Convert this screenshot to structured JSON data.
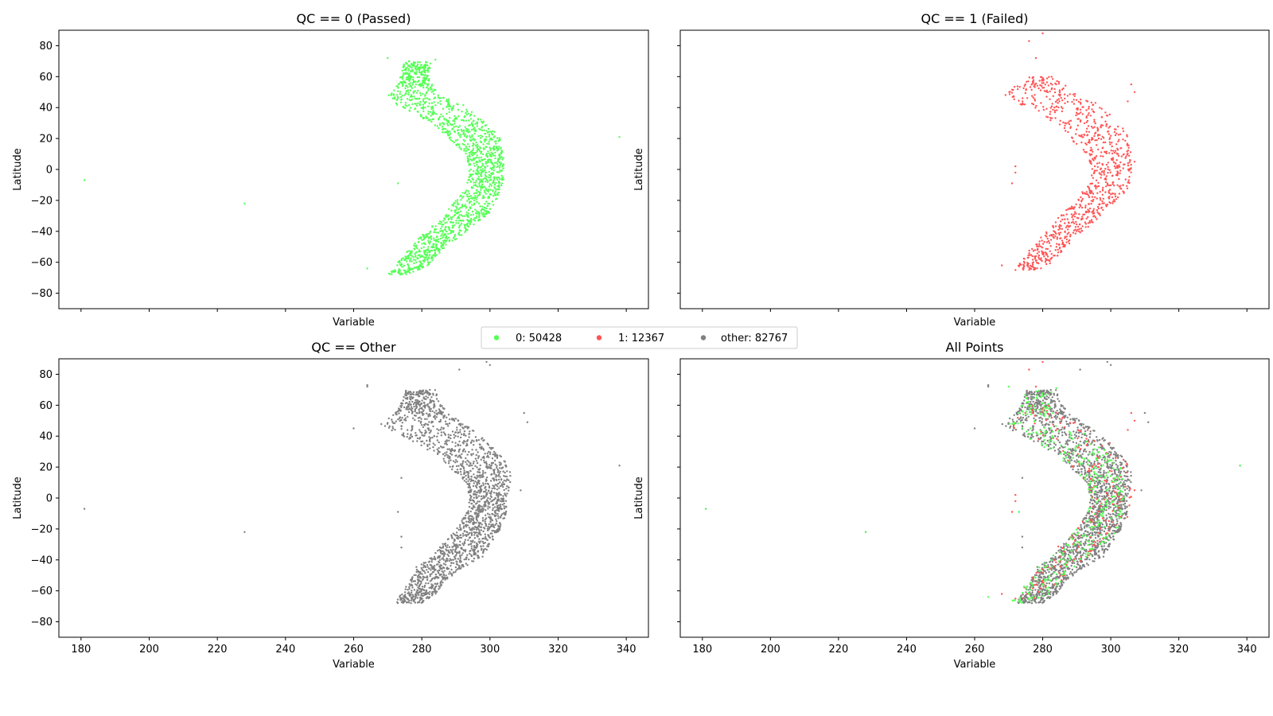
{
  "colors": {
    "passed": "#55ff55",
    "failed": "#ff5555",
    "other": "#808080"
  },
  "legend": {
    "placement": "center",
    "entries": [
      {
        "label": "0: 50428",
        "series": "passed"
      },
      {
        "label": "1: 12367",
        "series": "failed"
      },
      {
        "label": "other: 82767",
        "series": "other"
      }
    ]
  },
  "chart_data": [
    {
      "type": "scatter",
      "panel": "top-left",
      "title": "QC == 0 (Passed)",
      "xlabel": "Variable",
      "ylabel": "Latitude",
      "xlim": [
        173.5,
        346.5
      ],
      "ylim": [
        -90,
        90
      ],
      "xticks": [
        180,
        200,
        220,
        240,
        260,
        280,
        300,
        320,
        340
      ],
      "show_xticklabels": false,
      "yticks": [
        -80,
        -60,
        -40,
        -20,
        0,
        20,
        40,
        60,
        80
      ],
      "show_yticklabels": true,
      "grid": false,
      "series": [
        "passed"
      ]
    },
    {
      "type": "scatter",
      "panel": "top-right",
      "title": "QC == 1 (Failed)",
      "xlabel": "Variable",
      "ylabel": "Latitude",
      "xlim": [
        173.5,
        346.5
      ],
      "ylim": [
        -90,
        90
      ],
      "xticks": [
        180,
        200,
        220,
        240,
        260,
        280,
        300,
        320,
        340
      ],
      "show_xticklabels": false,
      "yticks": [
        -80,
        -60,
        -40,
        -20,
        0,
        20,
        40,
        60,
        80
      ],
      "show_yticklabels": false,
      "grid": false,
      "series": [
        "failed"
      ]
    },
    {
      "type": "scatter",
      "panel": "bottom-left",
      "title": "QC == Other",
      "xlabel": "Variable",
      "ylabel": "Latitude",
      "xlim": [
        173.5,
        346.5
      ],
      "ylim": [
        -90,
        90
      ],
      "xticks": [
        180,
        200,
        220,
        240,
        260,
        280,
        300,
        320,
        340
      ],
      "show_xticklabels": true,
      "yticks": [
        -80,
        -60,
        -40,
        -20,
        0,
        20,
        40,
        60,
        80
      ],
      "show_yticklabels": true,
      "grid": false,
      "series": [
        "other"
      ]
    },
    {
      "type": "scatter",
      "panel": "bottom-right",
      "title": "All Points",
      "xlabel": "Variable",
      "ylabel": "Latitude",
      "xlim": [
        173.5,
        346.5
      ],
      "ylim": [
        -90,
        90
      ],
      "xticks": [
        180,
        200,
        220,
        240,
        260,
        280,
        300,
        320,
        340
      ],
      "show_xticklabels": true,
      "yticks": [
        -80,
        -60,
        -40,
        -20,
        0,
        20,
        40,
        60,
        80
      ],
      "show_yticklabels": false,
      "grid": false,
      "series": [
        "other",
        "failed",
        "passed"
      ]
    }
  ],
  "series_data": {
    "passed": {
      "count": 50428,
      "band": [
        [
          -68,
          270,
          278
        ],
        [
          -60,
          273,
          283
        ],
        [
          -50,
          277,
          287
        ],
        [
          -42,
          280,
          292
        ],
        [
          -35,
          284,
          296
        ],
        [
          -28,
          287,
          300
        ],
        [
          -20,
          290,
          302
        ],
        [
          -10,
          293,
          304
        ],
        [
          0,
          294,
          304
        ],
        [
          10,
          293,
          304
        ],
        [
          20,
          288,
          303
        ],
        [
          28,
          284,
          300
        ],
        [
          35,
          279,
          296
        ],
        [
          42,
          272,
          292
        ],
        [
          48,
          270,
          285
        ],
        [
          55,
          273,
          283
        ],
        [
          62,
          274,
          282
        ],
        [
          70,
          275,
          283
        ]
      ],
      "outliers": [
        [
          181,
          -7
        ],
        [
          228,
          -22
        ],
        [
          338,
          21
        ],
        [
          273,
          -9
        ],
        [
          271,
          48
        ],
        [
          284,
          71
        ],
        [
          270,
          72
        ],
        [
          281,
          -44
        ],
        [
          264,
          -64
        ]
      ]
    },
    "failed": {
      "count": 12367,
      "band": [
        [
          -65,
          272,
          280
        ],
        [
          -55,
          275,
          285
        ],
        [
          -45,
          279,
          289
        ],
        [
          -38,
          282,
          293
        ],
        [
          -30,
          285,
          297
        ],
        [
          -20,
          290,
          302
        ],
        [
          -10,
          293,
          306
        ],
        [
          0,
          294,
          306
        ],
        [
          10,
          293,
          306
        ],
        [
          20,
          288,
          306
        ],
        [
          28,
          284,
          303
        ],
        [
          35,
          280,
          300
        ],
        [
          42,
          273,
          297
        ],
        [
          48,
          268,
          290
        ],
        [
          54,
          272,
          287
        ],
        [
          60,
          276,
          283
        ]
      ],
      "outliers": [
        [
          276,
          83
        ],
        [
          280,
          88
        ],
        [
          278,
          72
        ],
        [
          306,
          55
        ],
        [
          307,
          50
        ],
        [
          305,
          44
        ],
        [
          268,
          -62
        ],
        [
          272,
          -65
        ],
        [
          271,
          -9
        ],
        [
          272,
          2
        ],
        [
          307,
          5
        ],
        [
          272,
          -2
        ]
      ]
    },
    "other": {
      "count": 82767,
      "band": [
        [
          -68,
          272,
          280
        ],
        [
          -62,
          274,
          284
        ],
        [
          -52,
          277,
          288
        ],
        [
          -45,
          278,
          292
        ],
        [
          -38,
          283,
          298
        ],
        [
          -30,
          286,
          300
        ],
        [
          -20,
          290,
          303
        ],
        [
          -10,
          293,
          305
        ],
        [
          0,
          294,
          305
        ],
        [
          10,
          293,
          306
        ],
        [
          20,
          288,
          306
        ],
        [
          28,
          284,
          303
        ],
        [
          35,
          279,
          300
        ],
        [
          42,
          272,
          297
        ],
        [
          48,
          268,
          292
        ],
        [
          55,
          272,
          288
        ],
        [
          62,
          274,
          285
        ],
        [
          70,
          275,
          284
        ]
      ],
      "outliers": [
        [
          181,
          -7
        ],
        [
          228,
          -22
        ],
        [
          338,
          21
        ],
        [
          299,
          88
        ],
        [
          300,
          86
        ],
        [
          291,
          83
        ],
        [
          264,
          72
        ],
        [
          264,
          73
        ],
        [
          260,
          45
        ],
        [
          310,
          55
        ],
        [
          311,
          49
        ],
        [
          309,
          5
        ],
        [
          273,
          -9
        ],
        [
          274,
          -25
        ],
        [
          274,
          -32
        ],
        [
          274,
          13
        ]
      ]
    }
  }
}
